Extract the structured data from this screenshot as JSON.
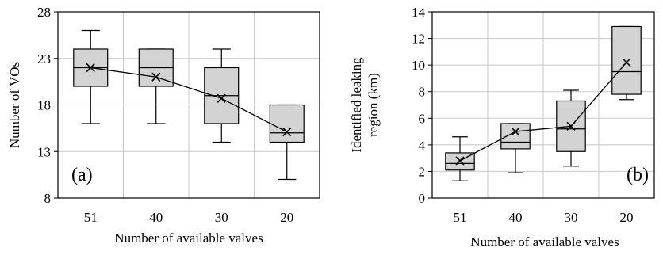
{
  "chart_data": [
    {
      "type": "box",
      "panel_label": "(a)",
      "xlabel": "Number of available valves",
      "ylabel": "Number of VOs",
      "categories": [
        "51",
        "40",
        "30",
        "20"
      ],
      "ylim": [
        8,
        28
      ],
      "yticks": [
        "8",
        "13",
        "18",
        "23",
        "28"
      ],
      "grid": true,
      "panel_label_position": "bottom-left",
      "box_fill": "#d3d3d3",
      "boxes": [
        {
          "whisker_low": 16,
          "q1": 20,
          "median": 22,
          "q3": 24,
          "whisker_high": 26,
          "mean": 22
        },
        {
          "whisker_low": 16,
          "q1": 20,
          "median": 22,
          "q3": 24,
          "whisker_high": 24,
          "mean": 21
        },
        {
          "whisker_low": 14,
          "q1": 16,
          "median": 19,
          "q3": 22,
          "whisker_high": 24,
          "mean": 18.7
        },
        {
          "whisker_low": 10,
          "q1": 14,
          "median": 15,
          "q3": 18,
          "whisker_high": 18,
          "mean": 15.1
        }
      ]
    },
    {
      "type": "box",
      "panel_label": "(b)",
      "xlabel": "Number of available valves",
      "ylabel": [
        "Identified leaking",
        "region (km)"
      ],
      "categories": [
        "51",
        "40",
        "30",
        "20"
      ],
      "ylim": [
        0,
        14
      ],
      "yticks": [
        "0",
        "2",
        "4",
        "6",
        "8",
        "10",
        "12",
        "14"
      ],
      "grid": true,
      "panel_label_position": "bottom-right",
      "box_fill": "#d3d3d3",
      "boxes": [
        {
          "whisker_low": 1.3,
          "q1": 2.1,
          "median": 2.6,
          "q3": 3.4,
          "whisker_high": 4.6,
          "mean": 2.8
        },
        {
          "whisker_low": 1.9,
          "q1": 3.7,
          "median": 4.2,
          "q3": 5.6,
          "whisker_high": 5.6,
          "mean": 5.0
        },
        {
          "whisker_low": 2.4,
          "q1": 3.5,
          "median": 5.2,
          "q3": 7.3,
          "whisker_high": 8.1,
          "mean": 5.4
        },
        {
          "whisker_low": 7.4,
          "q1": 7.8,
          "median": 9.5,
          "q3": 12.9,
          "whisker_high": 12.9,
          "mean": 10.2
        }
      ]
    }
  ]
}
